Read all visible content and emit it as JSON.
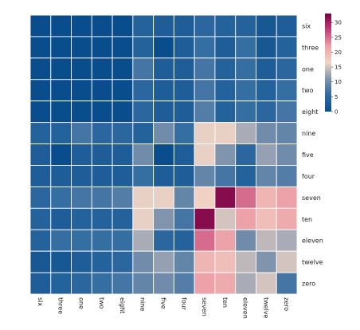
{
  "chart_data": {
    "type": "heatmap",
    "row_labels": [
      "six",
      "three",
      "one",
      "two",
      "eight",
      "nine",
      "five",
      "four",
      "seven",
      "ten",
      "eleven",
      "twelve",
      "zero"
    ],
    "col_labels": [
      "six",
      "three",
      "one",
      "two",
      "eight",
      "nine",
      "five",
      "four",
      "seven",
      "ten",
      "eleven",
      "twelve",
      "zero"
    ],
    "values": [
      [
        0,
        0,
        0,
        0,
        0,
        4,
        3,
        3,
        5,
        4,
        4,
        2,
        3
      ],
      [
        0,
        0,
        0,
        0,
        0,
        4,
        0,
        3,
        6,
        3,
        6,
        2,
        4
      ],
      [
        0,
        0,
        0,
        0,
        0,
        7,
        3,
        3,
        7,
        4,
        6,
        3,
        5
      ],
      [
        0,
        0,
        0,
        0,
        0,
        5,
        3,
        3,
        7,
        4,
        6,
        4,
        6
      ],
      [
        0,
        0,
        0,
        0,
        0,
        5,
        3,
        3,
        8,
        4,
        6,
        5,
        7
      ],
      [
        4,
        4,
        7,
        5,
        5,
        4,
        10,
        6,
        16,
        16,
        13,
        10,
        9
      ],
      [
        3,
        0,
        3,
        3,
        3,
        10,
        0,
        3,
        16,
        11,
        5,
        12,
        10
      ],
      [
        3,
        3,
        3,
        3,
        3,
        6,
        3,
        3,
        9,
        7,
        4,
        9,
        8
      ],
      [
        5,
        6,
        7,
        7,
        8,
        16,
        16,
        9,
        17,
        32,
        25,
        20,
        22
      ],
      [
        4,
        3,
        4,
        4,
        4,
        16,
        11,
        7,
        32,
        15,
        22,
        19,
        21
      ],
      [
        4,
        6,
        6,
        6,
        6,
        13,
        5,
        4,
        25,
        22,
        10,
        14,
        13
      ],
      [
        2,
        2,
        3,
        4,
        5,
        10,
        12,
        9,
        20,
        19,
        14,
        11,
        15
      ],
      [
        3,
        4,
        5,
        6,
        7,
        9,
        10,
        8,
        22,
        21,
        13,
        15,
        7
      ]
    ],
    "vmin": 0,
    "vmax": 33,
    "colorbar_ticks": [
      0,
      5,
      10,
      15,
      20,
      25,
      30
    ],
    "colormap": [
      "#0a4d8c",
      "#2e6aa0",
      "#8094ad",
      "#f2d6c6",
      "#eca2a8",
      "#c23f78",
      "#7a0143"
    ],
    "grid_line_color": "#ffffff",
    "colorbar_position": "right"
  }
}
